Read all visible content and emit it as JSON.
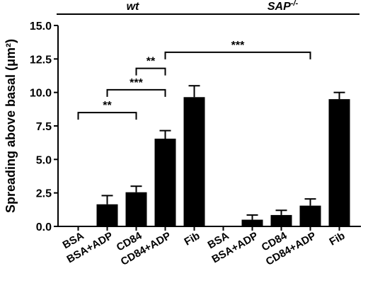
{
  "chart_data": {
    "type": "bar",
    "ylabel": "Spreading above basal (μm²)",
    "ylim": [
      0,
      15
    ],
    "yticks": [
      "0.0",
      "2.5",
      "5.0",
      "7.5",
      "10.0",
      "12.5",
      "15.0"
    ],
    "groups": [
      {
        "name": "wt",
        "superscript": "",
        "categories": [
          "BSA",
          "BSA+ADP",
          "CD84",
          "CD84+ADP",
          "Fib"
        ],
        "values": [
          0.0,
          1.65,
          2.55,
          6.55,
          9.65
        ],
        "errors": [
          0.0,
          0.65,
          0.45,
          0.6,
          0.85
        ]
      },
      {
        "name": "SAP",
        "superscript": "-/-",
        "categories": [
          "BSA",
          "BSA+ADP",
          "CD84",
          "CD84+ADP",
          "Fib"
        ],
        "values": [
          0.0,
          0.5,
          0.85,
          1.55,
          9.5
        ],
        "errors": [
          0.0,
          0.35,
          0.35,
          0.5,
          0.5
        ]
      }
    ],
    "significance": [
      {
        "from": 0,
        "to": 2,
        "label": "**",
        "y": 8.5
      },
      {
        "from": 1,
        "to": 3,
        "label": "***",
        "y": 10.2
      },
      {
        "from": 2,
        "to": 3,
        "label": "**",
        "y": 11.8
      },
      {
        "from": 3,
        "to": 8,
        "label": "***",
        "y": 13.0
      }
    ],
    "legend": "none",
    "grid": false
  }
}
